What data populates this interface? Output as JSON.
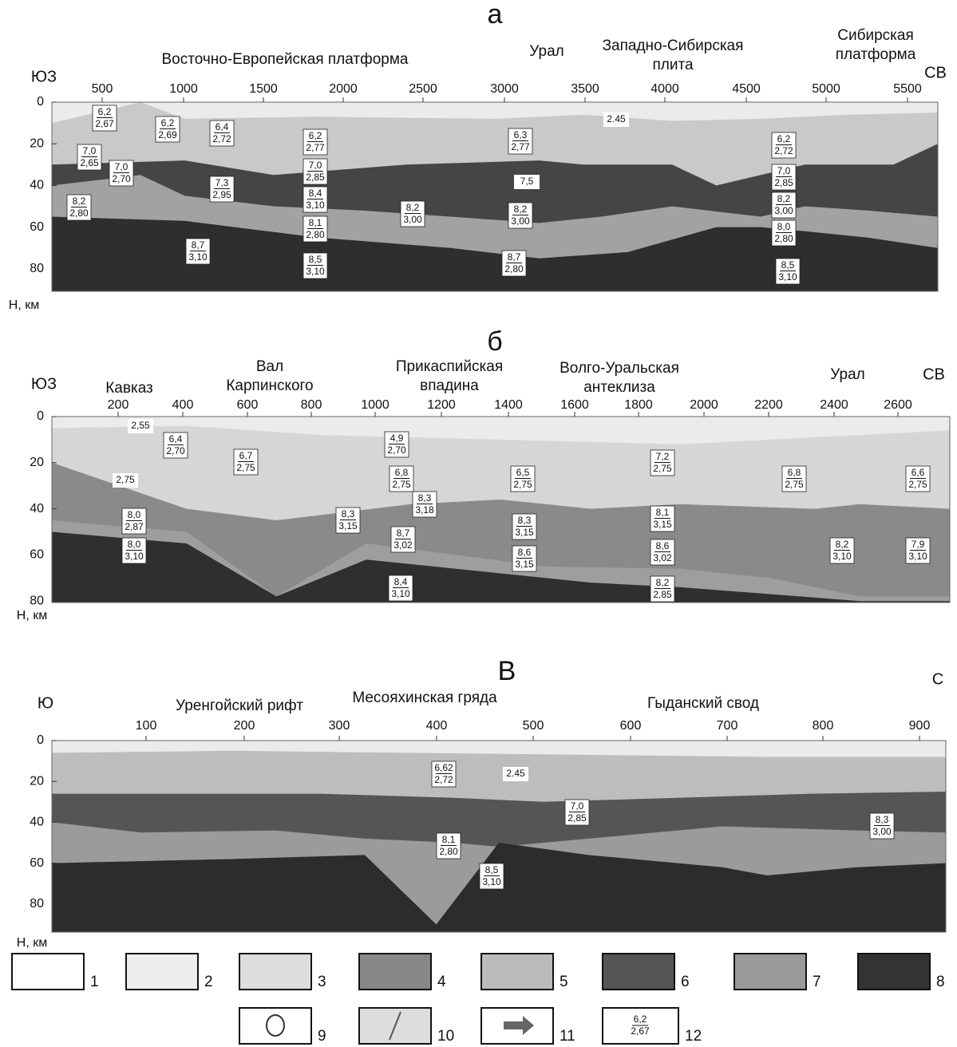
{
  "panels": [
    {
      "letter": "а",
      "left_dir": "ЮЗ",
      "right_dir": "СВ",
      "ylabel": "Н, км",
      "regions": [
        "Восточно-Европейская платформа",
        "Урал",
        "Западно-Сибирская плита",
        "Сибирская платформа"
      ],
      "xticks": [
        "500",
        "1000",
        "1500",
        "2000",
        "2500",
        "3000",
        "3500",
        "4000",
        "4500",
        "5000",
        "5500"
      ],
      "yticks": [
        "0",
        "20",
        "40",
        "60",
        "80"
      ],
      "labels": [
        {
          "v": "6,2",
          "d": "2,67"
        },
        {
          "v": "6,2",
          "d": "2,69"
        },
        {
          "v": "6,4",
          "d": "2,72"
        },
        {
          "v": "6,2",
          "d": "2,77"
        },
        {
          "v": "6,3",
          "d": "2,77"
        },
        {
          "v": "6,2",
          "d": "2,72"
        },
        {
          "v": "7,0",
          "d": "2,65"
        },
        {
          "v": "7,0",
          "d": "2,70"
        },
        {
          "v": "7,3",
          "d": "2,95"
        },
        {
          "v": "7,0",
          "d": "2,85"
        },
        {
          "v": "8,4",
          "d": "3,10"
        },
        {
          "v": "7,0",
          "d": "2,85"
        },
        {
          "v": "8,2",
          "d": "2,80"
        },
        {
          "v": "8,2",
          "d": "3,00"
        },
        {
          "v": "8,2",
          "d": "3,00"
        },
        {
          "v": "8,2",
          "d": "3,00"
        },
        {
          "v": "8,1",
          "d": "2,80"
        },
        {
          "v": "8,0",
          "d": "2,80"
        },
        {
          "v": "8,7",
          "d": "3,10"
        },
        {
          "v": "8,5",
          "d": "3,10"
        },
        {
          "v": "8,7",
          "d": "2,80"
        },
        {
          "v": "8,5",
          "d": "3,10"
        }
      ],
      "notes": [
        "2.45",
        "7,5"
      ]
    },
    {
      "letter": "б",
      "left_dir": "ЮЗ",
      "right_dir": "СВ",
      "ylabel": "Н, км",
      "regions": [
        "Кавказ",
        "Вал Карпинского",
        "Прикаспийская впадина",
        "Волго-Уральская антеклиза",
        "Урал"
      ],
      "xticks": [
        "200",
        "400",
        "600",
        "800",
        "1000",
        "1200",
        "1400",
        "1600",
        "1800",
        "2000",
        "2200",
        "2400",
        "2600"
      ],
      "yticks": [
        "0",
        "20",
        "40",
        "60",
        "80"
      ],
      "labels": [
        {
          "v": "6,4",
          "d": "2,70"
        },
        {
          "v": "6,7",
          "d": "2,75"
        },
        {
          "v": "4,9",
          "d": "2,70"
        },
        {
          "v": "6,8",
          "d": "2,75"
        },
        {
          "v": "8,3",
          "d": "3,18"
        },
        {
          "v": "6,5",
          "d": "2,75"
        },
        {
          "v": "7,2",
          "d": "2,75"
        },
        {
          "v": "6,8",
          "d": "2,75"
        },
        {
          "v": "6,6",
          "d": "2,75"
        },
        {
          "v": "8,3",
          "d": "3,15"
        },
        {
          "v": "8,0",
          "d": "2,87"
        },
        {
          "v": "8,7",
          "d": "3,02"
        },
        {
          "v": "8,3",
          "d": "3,15"
        },
        {
          "v": "8,1",
          "d": "3,15"
        },
        {
          "v": "8,0",
          "d": "3,10"
        },
        {
          "v": "8,6",
          "d": "3,15"
        },
        {
          "v": "8,6",
          "d": "3,02"
        },
        {
          "v": "8,2",
          "d": "3,10"
        },
        {
          "v": "7,9",
          "d": "3,10"
        },
        {
          "v": "8,4",
          "d": "3,10"
        },
        {
          "v": "8,2",
          "d": "2,85"
        }
      ],
      "notes": [
        "2,55",
        "2,75"
      ]
    },
    {
      "letter": "В",
      "left_dir": "Ю",
      "right_dir": "С",
      "ylabel": "Н, км",
      "regions": [
        "Уренгойский рифт",
        "Месояхинская гряда",
        "Гыданский свод"
      ],
      "xticks": [
        "100",
        "200",
        "300",
        "400",
        "500",
        "600",
        "700",
        "800",
        "900"
      ],
      "yticks": [
        "0",
        "20",
        "40",
        "60",
        "80"
      ],
      "labels": [
        {
          "v": "6,62",
          "d": "2,72"
        },
        {
          "v": "7,0",
          "d": "2,85"
        },
        {
          "v": "8,3",
          "d": "3,00"
        },
        {
          "v": "8,1",
          "d": "2,80"
        },
        {
          "v": "8,5",
          "d": "3,10"
        }
      ],
      "notes": [
        "2.45"
      ]
    }
  ],
  "legend": {
    "items": [
      "1",
      "2",
      "3",
      "4",
      "5",
      "6",
      "7",
      "8",
      "9",
      "10",
      "11",
      "12"
    ],
    "sample": {
      "v": "6,2",
      "d": "2,67"
    }
  }
}
